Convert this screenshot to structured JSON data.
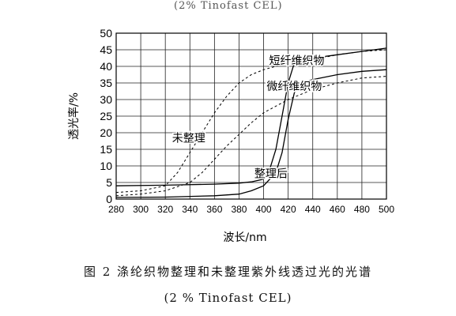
{
  "top_fragment": "(2% Tinofast CEL)",
  "caption": {
    "main": "图 2 涤纶织物整理和未整理紫外线透过光的光谱",
    "sub": "(2 % Tinofast CEL)"
  },
  "chart_data": {
    "type": "line",
    "title": "",
    "xlabel": "波长/nm",
    "ylabel": "透光率/%",
    "xlim": [
      280,
      500
    ],
    "ylim": [
      0,
      50
    ],
    "xticks": [
      280,
      300,
      320,
      340,
      360,
      380,
      400,
      420,
      440,
      460,
      480,
      500
    ],
    "yticks": [
      0,
      5,
      10,
      15,
      20,
      25,
      30,
      35,
      40,
      45,
      50
    ],
    "grid": true,
    "annotations": [
      "短纤维织物",
      "微纤维织物",
      "未整理",
      "整理后"
    ],
    "series": [
      {
        "group": "未整理",
        "fabric": "短纤维织物",
        "style": "dashed",
        "x": [
          280,
          300,
          320,
          330,
          340,
          350,
          360,
          370,
          380,
          390,
          400,
          420,
          440,
          460,
          480,
          500
        ],
        "y": [
          2,
          2.5,
          4,
          8,
          14,
          20,
          26,
          31,
          35,
          37.5,
          39,
          41,
          42,
          43.5,
          44.5,
          45
        ]
      },
      {
        "group": "未整理",
        "fabric": "微纤维织物",
        "style": "dashed",
        "x": [
          280,
          300,
          320,
          340,
          350,
          360,
          370,
          380,
          390,
          400,
          420,
          440,
          460,
          480,
          500
        ],
        "y": [
          1,
          1.5,
          2.5,
          5,
          8,
          12,
          16,
          19.5,
          23,
          26,
          30,
          33,
          35,
          36.5,
          37
        ]
      },
      {
        "group": "整理后",
        "fabric": "短纤维织物",
        "style": "solid",
        "x": [
          280,
          320,
          360,
          380,
          390,
          400,
          405,
          410,
          415,
          420,
          425,
          430,
          440,
          460,
          480,
          500
        ],
        "y": [
          4,
          4.2,
          4.5,
          4.8,
          5.2,
          6,
          9,
          15,
          25,
          35,
          41,
          42,
          42.5,
          43.5,
          44.5,
          45.5
        ]
      },
      {
        "group": "整理后",
        "fabric": "微纤维织物",
        "style": "solid",
        "x": [
          280,
          320,
          360,
          380,
          390,
          400,
          410,
          415,
          420,
          425,
          430,
          440,
          460,
          480,
          500
        ],
        "y": [
          0.5,
          0.6,
          1,
          1.5,
          2.5,
          4,
          8,
          14,
          24,
          32,
          35,
          36,
          37.5,
          38.5,
          39
        ]
      }
    ]
  }
}
